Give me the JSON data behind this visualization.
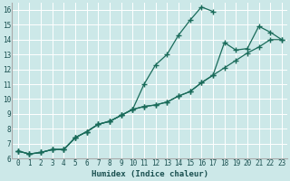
{
  "xlabel": "Humidex (Indice chaleur)",
  "bg_color": "#cce8e8",
  "grid_color": "#ffffff",
  "line_color": "#1a6b5a",
  "xlim": [
    -0.5,
    23.5
  ],
  "ylim": [
    6.0,
    16.5
  ],
  "xticks": [
    0,
    1,
    2,
    3,
    4,
    5,
    6,
    7,
    8,
    9,
    10,
    11,
    12,
    13,
    14,
    15,
    16,
    17,
    18,
    19,
    20,
    21,
    22,
    23
  ],
  "yticks": [
    6,
    7,
    8,
    9,
    10,
    11,
    12,
    13,
    14,
    15,
    16
  ],
  "line1_x": [
    0,
    1,
    2,
    3,
    4,
    5,
    6,
    7,
    8,
    9,
    10,
    11,
    12,
    13,
    14,
    15,
    16,
    17
  ],
  "line1_y": [
    6.5,
    6.3,
    6.4,
    6.6,
    6.6,
    7.4,
    7.8,
    8.3,
    8.5,
    8.9,
    9.3,
    11.0,
    12.3,
    13.0,
    14.3,
    15.3,
    16.2,
    15.9
  ],
  "line2_x": [
    0,
    1,
    2,
    3,
    4,
    5,
    6,
    7,
    8,
    9,
    10,
    11,
    12,
    13,
    14,
    15,
    16,
    17,
    18,
    19,
    20,
    21,
    22,
    23
  ],
  "line2_y": [
    6.5,
    6.3,
    6.4,
    6.6,
    6.6,
    7.4,
    7.8,
    8.3,
    8.5,
    8.9,
    9.3,
    9.5,
    9.6,
    9.8,
    10.2,
    10.5,
    11.1,
    11.6,
    13.8,
    13.3,
    13.4,
    14.9,
    14.5,
    14.0
  ],
  "line3_x": [
    0,
    1,
    2,
    3,
    4,
    5,
    6,
    7,
    8,
    9,
    10,
    11,
    12,
    13,
    14,
    15,
    16,
    17,
    18,
    19,
    20,
    21,
    22,
    23
  ],
  "line3_y": [
    6.5,
    6.3,
    6.4,
    6.6,
    6.6,
    7.4,
    7.8,
    8.3,
    8.5,
    8.9,
    9.3,
    9.5,
    9.6,
    9.8,
    10.2,
    10.5,
    11.1,
    11.6,
    12.1,
    12.6,
    13.1,
    13.5,
    14.0,
    14.0
  ]
}
